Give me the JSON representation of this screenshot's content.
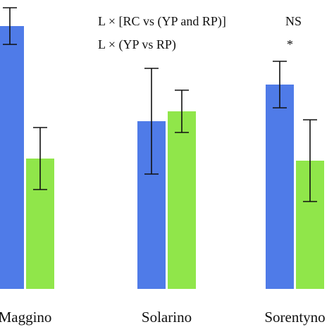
{
  "chart_data": {
    "type": "bar",
    "categories": [
      "Maggino",
      "Solarino",
      "Sorentyno"
    ],
    "series": [
      {
        "color": "#4f7be8",
        "values": [
          373,
          238,
          290
        ],
        "error": [
          26,
          75,
          33
        ]
      },
      {
        "color": "#90e64a",
        "values": [
          185,
          252,
          182
        ],
        "error": [
          44,
          30,
          58
        ]
      }
    ],
    "ylim": [
      0,
      420
    ],
    "grid": false,
    "xlabel": "",
    "ylabel": "",
    "annotations": [
      {
        "label": "L × [RC vs (YP and RP)]",
        "significance": "NS"
      },
      {
        "label": "L × (YP vs RP)",
        "significance": "*"
      }
    ]
  }
}
